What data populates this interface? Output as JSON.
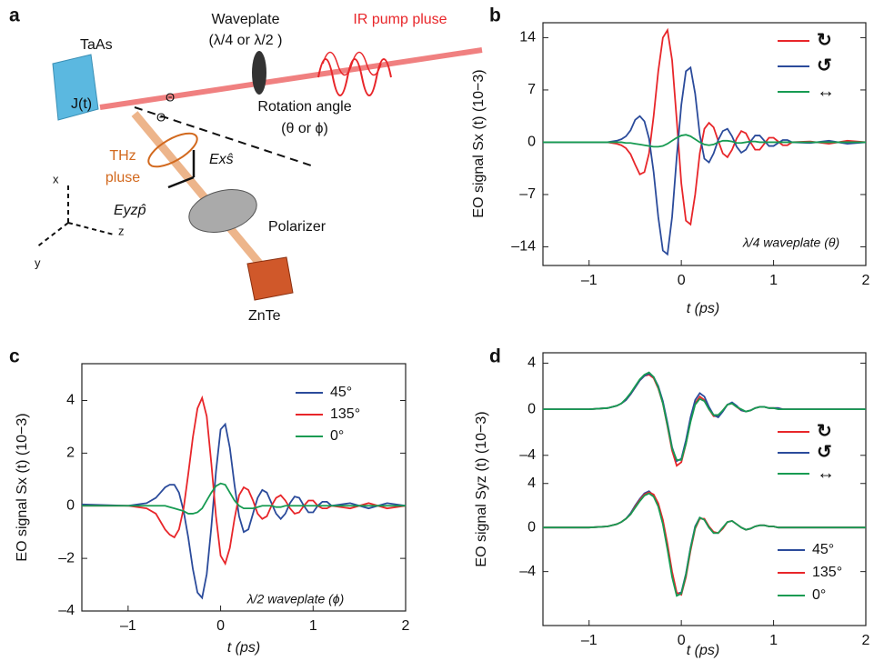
{
  "diagram": {
    "panel_label": "a",
    "labels": [
      "Waveplate",
      "(λ/4 or λ/2 )",
      "IR pump pluse",
      "TaAs",
      "J(t)",
      "Θ",
      "Θ",
      "Rotation angle",
      "(θ or ϕ)",
      "THz",
      "pluse",
      "Exŝ",
      "Eyzp̂",
      "Polarizer",
      "ZnTe",
      "x",
      "y",
      "z"
    ]
  },
  "chart_data": [
    {
      "type": "line",
      "panel": "b",
      "xlabel": "t (ps)",
      "ylabel": "EO signal Sx (t) (10−3)",
      "annotation": "λ/4 waveplate (θ)",
      "xlim": [
        -1.5,
        2
      ],
      "xticks": [
        {
          "value": -1,
          "label": "–1"
        },
        0,
        1,
        2
      ],
      "ylim": [
        -16.5,
        16
      ],
      "yticks": [
        {
          "value": -14,
          "label": "–14"
        },
        {
          "value": -7,
          "label": "–7"
        },
        0,
        7,
        14
      ],
      "x": [
        -1.5,
        -1.0,
        -0.8,
        -0.7,
        -0.65,
        -0.6,
        -0.55,
        -0.5,
        -0.45,
        -0.4,
        -0.35,
        -0.3,
        -0.25,
        -0.2,
        -0.15,
        -0.1,
        -0.05,
        0,
        0.05,
        0.1,
        0.15,
        0.2,
        0.25,
        0.3,
        0.35,
        0.4,
        0.45,
        0.5,
        0.55,
        0.6,
        0.65,
        0.7,
        0.75,
        0.8,
        0.85,
        0.9,
        0.95,
        1.0,
        1.05,
        1.1,
        1.15,
        1.2,
        1.4,
        1.6,
        1.8,
        2.0
      ],
      "series": [
        {
          "name": "↻",
          "color": "#e8262a",
          "values": [
            0,
            0,
            0,
            -0.2,
            -0.4,
            -0.8,
            -1.6,
            -3.0,
            -4.3,
            -4.0,
            -1.5,
            3.5,
            9.5,
            14,
            15,
            11,
            3,
            -5.5,
            -10.5,
            -11,
            -7,
            -1.5,
            1.8,
            2.6,
            2.0,
            0.2,
            -1.5,
            -2.0,
            -1.0,
            0.5,
            1.5,
            1.2,
            0,
            -1.0,
            -1.0,
            -0.2,
            0.6,
            0.6,
            0.1,
            -0.4,
            -0.4,
            0,
            0.1,
            -0.2,
            0.2,
            0
          ]
        },
        {
          "name": "↺",
          "color": "#2b4b9b",
          "values": [
            0,
            0,
            0,
            0.2,
            0.4,
            0.8,
            1.6,
            3.0,
            3.5,
            2.8,
            0.5,
            -4,
            -10,
            -14.5,
            -15,
            -10,
            -2,
            5,
            9.5,
            10,
            6.5,
            1,
            -2.2,
            -2.7,
            -1.5,
            0.3,
            1.5,
            1.8,
            0.8,
            -0.6,
            -1.4,
            -1.0,
            0.1,
            0.9,
            0.9,
            0.2,
            -0.5,
            -0.5,
            -0.1,
            0.3,
            0.3,
            0,
            -0.1,
            0.2,
            -0.2,
            0
          ]
        },
        {
          "name": "↔",
          "color": "#179b52",
          "values": [
            0,
            0,
            0,
            0,
            0,
            -0.1,
            -0.1,
            -0.2,
            -0.3,
            -0.4,
            -0.5,
            -0.6,
            -0.6,
            -0.5,
            -0.2,
            0.2,
            0.6,
            0.9,
            1.0,
            0.8,
            0.4,
            0,
            -0.3,
            -0.4,
            -0.3,
            0,
            0.2,
            0.2,
            0.1,
            -0.1,
            -0.1,
            0,
            0.1,
            0.1,
            0,
            0,
            0,
            0,
            0,
            0,
            0,
            0,
            0,
            0,
            0,
            0
          ]
        }
      ]
    },
    {
      "type": "line",
      "panel": "c",
      "xlabel": "t (ps)",
      "ylabel": "EO signal Sx (t) (10−3)",
      "annotation": "λ/2 waveplate (ϕ)",
      "xlim": [
        -1.5,
        2
      ],
      "xticks": [
        {
          "value": -1,
          "label": "–1"
        },
        0,
        1,
        2
      ],
      "ylim": [
        -4,
        5.4
      ],
      "yticks": [
        {
          "value": -4,
          "label": "–4"
        },
        {
          "value": -2,
          "label": "–2"
        },
        0,
        2,
        4
      ],
      "x": [
        -1.5,
        -1.0,
        -0.8,
        -0.7,
        -0.65,
        -0.6,
        -0.55,
        -0.5,
        -0.45,
        -0.4,
        -0.35,
        -0.3,
        -0.25,
        -0.2,
        -0.15,
        -0.1,
        -0.05,
        0,
        0.05,
        0.1,
        0.15,
        0.2,
        0.25,
        0.3,
        0.35,
        0.4,
        0.45,
        0.5,
        0.55,
        0.6,
        0.65,
        0.7,
        0.75,
        0.8,
        0.85,
        0.9,
        0.95,
        1.0,
        1.05,
        1.1,
        1.15,
        1.2,
        1.4,
        1.6,
        1.8,
        2.0
      ],
      "series": [
        {
          "name": "45°",
          "color": "#2b4b9b",
          "values": [
            0.05,
            0,
            0.1,
            0.3,
            0.5,
            0.7,
            0.8,
            0.8,
            0.5,
            -0.2,
            -1.2,
            -2.4,
            -3.3,
            -3.5,
            -2.6,
            -0.8,
            1.3,
            2.9,
            3.1,
            2.2,
            0.8,
            -0.4,
            -1.0,
            -0.9,
            -0.3,
            0.3,
            0.6,
            0.5,
            0.1,
            -0.3,
            -0.5,
            -0.3,
            0.1,
            0.35,
            0.3,
            0,
            -0.25,
            -0.25,
            0,
            0.15,
            0.15,
            0,
            0.1,
            -0.1,
            0.1,
            0
          ]
        },
        {
          "name": "135°",
          "color": "#e8262a",
          "values": [
            0,
            0,
            -0.1,
            -0.3,
            -0.6,
            -0.9,
            -1.1,
            -1.2,
            -0.9,
            -0.1,
            1.2,
            2.6,
            3.7,
            4.1,
            3.4,
            1.6,
            -0.4,
            -1.9,
            -2.2,
            -1.6,
            -0.5,
            0.4,
            0.7,
            0.6,
            0.2,
            -0.3,
            -0.5,
            -0.4,
            0,
            0.3,
            0.4,
            0.2,
            -0.1,
            -0.3,
            -0.25,
            0,
            0.2,
            0.2,
            0,
            -0.1,
            -0.1,
            0,
            -0.1,
            0.1,
            -0.1,
            0
          ]
        },
        {
          "name": "0°",
          "color": "#179b52",
          "values": [
            0,
            0,
            0,
            0,
            0,
            0,
            -0.05,
            -0.1,
            -0.15,
            -0.2,
            -0.3,
            -0.3,
            -0.25,
            -0.1,
            0.2,
            0.5,
            0.75,
            0.85,
            0.8,
            0.5,
            0.2,
            0,
            -0.1,
            -0.1,
            -0.1,
            -0.05,
            0,
            0,
            0,
            -0.05,
            -0.05,
            0,
            0,
            0,
            0,
            0,
            0,
            0,
            0,
            0,
            0,
            0,
            0,
            0,
            0,
            0
          ]
        }
      ]
    },
    {
      "type": "line",
      "panel": "d",
      "ylabel": "EO signal Syz (t) (10−3)",
      "xlim": [
        -1.5,
        2
      ],
      "ylim": [
        -5.2,
        4.9
      ],
      "yticks": [
        {
          "value": -4,
          "label": "–4"
        },
        0,
        4
      ],
      "x": [
        -1.5,
        -1.0,
        -0.8,
        -0.7,
        -0.65,
        -0.6,
        -0.55,
        -0.5,
        -0.45,
        -0.4,
        -0.35,
        -0.3,
        -0.25,
        -0.2,
        -0.15,
        -0.1,
        -0.05,
        0,
        0.05,
        0.1,
        0.15,
        0.2,
        0.25,
        0.3,
        0.35,
        0.4,
        0.45,
        0.5,
        0.55,
        0.6,
        0.65,
        0.7,
        0.75,
        0.8,
        0.85,
        0.9,
        0.95,
        1.0,
        1.05,
        1.1,
        1.15,
        1.2,
        1.4,
        1.6,
        1.8,
        2.0
      ],
      "series": [
        {
          "name": "↻",
          "color": "#e8262a",
          "values": [
            0,
            0,
            0.1,
            0.3,
            0.5,
            0.8,
            1.3,
            1.9,
            2.5,
            2.9,
            3.0,
            2.7,
            1.8,
            0.5,
            -1.5,
            -3.6,
            -4.9,
            -4.6,
            -3.0,
            -1.0,
            0.5,
            1.1,
            0.8,
            0,
            -0.6,
            -0.6,
            -0.1,
            0.4,
            0.5,
            0.2,
            -0.1,
            -0.2,
            -0.1,
            0.1,
            0.2,
            0.2,
            0.1,
            0.1,
            0.1,
            0,
            0,
            0,
            0,
            0,
            0,
            0
          ]
        },
        {
          "name": "↺",
          "color": "#2b4b9b",
          "values": [
            0,
            0,
            0.1,
            0.3,
            0.5,
            0.8,
            1.3,
            1.9,
            2.5,
            2.9,
            3.1,
            2.8,
            2.0,
            0.7,
            -1.2,
            -3.3,
            -4.5,
            -4.3,
            -2.7,
            -0.7,
            0.8,
            1.4,
            1.1,
            0.2,
            -0.5,
            -0.7,
            -0.2,
            0.4,
            0.6,
            0.3,
            -0.1,
            -0.2,
            -0.1,
            0.1,
            0.2,
            0.2,
            0.1,
            0.1,
            0.1,
            0,
            0,
            0,
            0,
            0,
            0,
            0
          ]
        },
        {
          "name": "↔",
          "color": "#179b52",
          "values": [
            0,
            0,
            0.1,
            0.3,
            0.5,
            0.9,
            1.4,
            2.0,
            2.6,
            3.0,
            3.2,
            2.8,
            1.9,
            0.5,
            -1.4,
            -3.4,
            -4.4,
            -4.4,
            -3.0,
            -1.1,
            0.4,
            0.9,
            0.7,
            0,
            -0.5,
            -0.5,
            -0.1,
            0.4,
            0.5,
            0.2,
            0,
            -0.2,
            -0.1,
            0.1,
            0.2,
            0.2,
            0.1,
            0.1,
            0,
            0,
            0,
            0,
            0,
            0,
            0,
            0
          ]
        }
      ]
    },
    {
      "type": "line",
      "xlabel": "t (ps)",
      "xlim": [
        -1.5,
        2
      ],
      "xticks": [
        {
          "value": -1,
          "label": "–1"
        },
        0,
        1,
        2
      ],
      "ylim": [
        -8.9,
        5.3
      ],
      "yticks": [
        {
          "value": -4,
          "label": "–4"
        },
        0,
        4
      ],
      "x": [
        -1.5,
        -1.0,
        -0.8,
        -0.7,
        -0.65,
        -0.6,
        -0.55,
        -0.5,
        -0.45,
        -0.4,
        -0.35,
        -0.3,
        -0.25,
        -0.2,
        -0.15,
        -0.1,
        -0.05,
        0,
        0.05,
        0.1,
        0.15,
        0.2,
        0.25,
        0.3,
        0.35,
        0.4,
        0.45,
        0.5,
        0.55,
        0.6,
        0.65,
        0.7,
        0.75,
        0.8,
        0.85,
        0.9,
        0.95,
        1.0,
        1.05,
        1.1,
        1.15,
        1.2,
        1.4,
        1.6,
        1.8,
        2.0
      ],
      "series": [
        {
          "name": "45°",
          "color": "#2b4b9b",
          "values": [
            0,
            0,
            0.1,
            0.3,
            0.5,
            0.8,
            1.3,
            2.0,
            2.6,
            3.1,
            3.3,
            2.9,
            2.0,
            0.4,
            -1.8,
            -4.3,
            -6.0,
            -5.9,
            -4.2,
            -1.8,
            0.1,
            0.9,
            0.7,
            0,
            -0.5,
            -0.5,
            0,
            0.5,
            0.6,
            0.3,
            0,
            -0.2,
            -0.1,
            0.1,
            0.2,
            0.2,
            0.1,
            0.1,
            0,
            0,
            0,
            0,
            0,
            0,
            0,
            0
          ]
        },
        {
          "name": "135°",
          "color": "#e8262a",
          "values": [
            0,
            0,
            0.1,
            0.3,
            0.5,
            0.8,
            1.2,
            1.9,
            2.5,
            3.0,
            3.2,
            3.0,
            2.2,
            0.7,
            -1.5,
            -4.0,
            -5.9,
            -6.1,
            -4.5,
            -2.1,
            -0.1,
            0.8,
            0.8,
            0.1,
            -0.4,
            -0.5,
            -0.1,
            0.5,
            0.6,
            0.3,
            0,
            -0.2,
            -0.1,
            0.1,
            0.2,
            0.2,
            0.1,
            0.1,
            0,
            0,
            0,
            0,
            0,
            0,
            0,
            0
          ]
        },
        {
          "name": "0°",
          "color": "#179b52",
          "values": [
            0,
            0,
            0.1,
            0.3,
            0.5,
            0.8,
            1.2,
            1.8,
            2.4,
            2.9,
            3.1,
            2.8,
            1.9,
            0.3,
            -2.0,
            -4.5,
            -6.2,
            -6.0,
            -4.3,
            -1.9,
            0,
            0.9,
            0.7,
            0,
            -0.5,
            -0.5,
            0,
            0.5,
            0.6,
            0.3,
            0,
            -0.2,
            -0.1,
            0.1,
            0.2,
            0.2,
            0.1,
            0.1,
            0,
            0,
            0,
            0,
            0,
            0,
            0,
            0
          ]
        }
      ]
    }
  ]
}
